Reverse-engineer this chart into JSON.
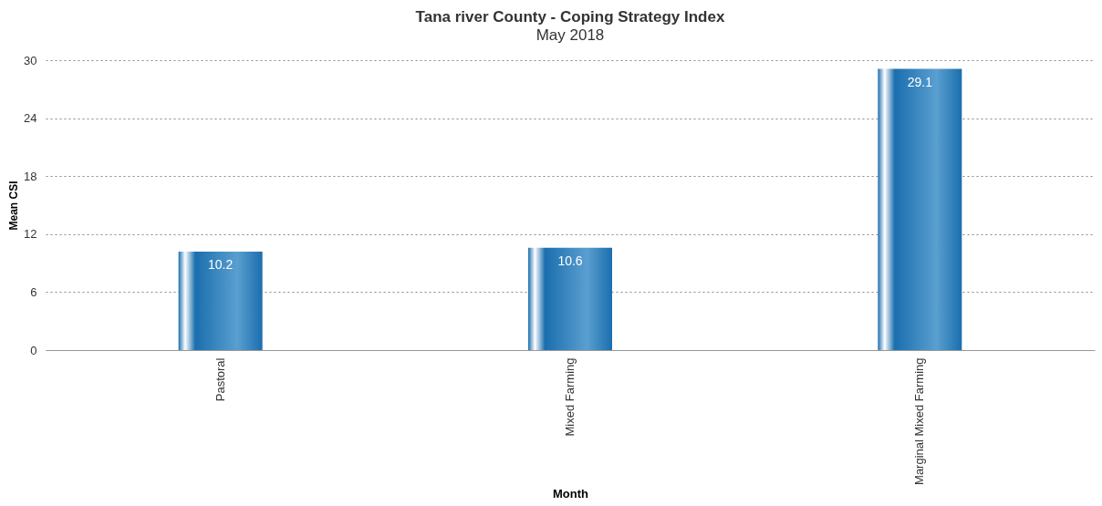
{
  "chart_data": {
    "type": "bar",
    "title": "Tana river County - Coping Strategy Index",
    "subtitle": "May 2018",
    "xlabel": "Month",
    "ylabel": "Mean CSI",
    "categories": [
      "Pastoral",
      "Mixed Farming",
      "Marginal Mixed Farming"
    ],
    "values": [
      10.2,
      10.6,
      29.1
    ],
    "color": "#1a6eae",
    "ylim": [
      0,
      30
    ],
    "yticks": [
      0,
      6,
      12,
      18,
      24,
      30
    ],
    "grid": "y",
    "data_labels": true
  }
}
